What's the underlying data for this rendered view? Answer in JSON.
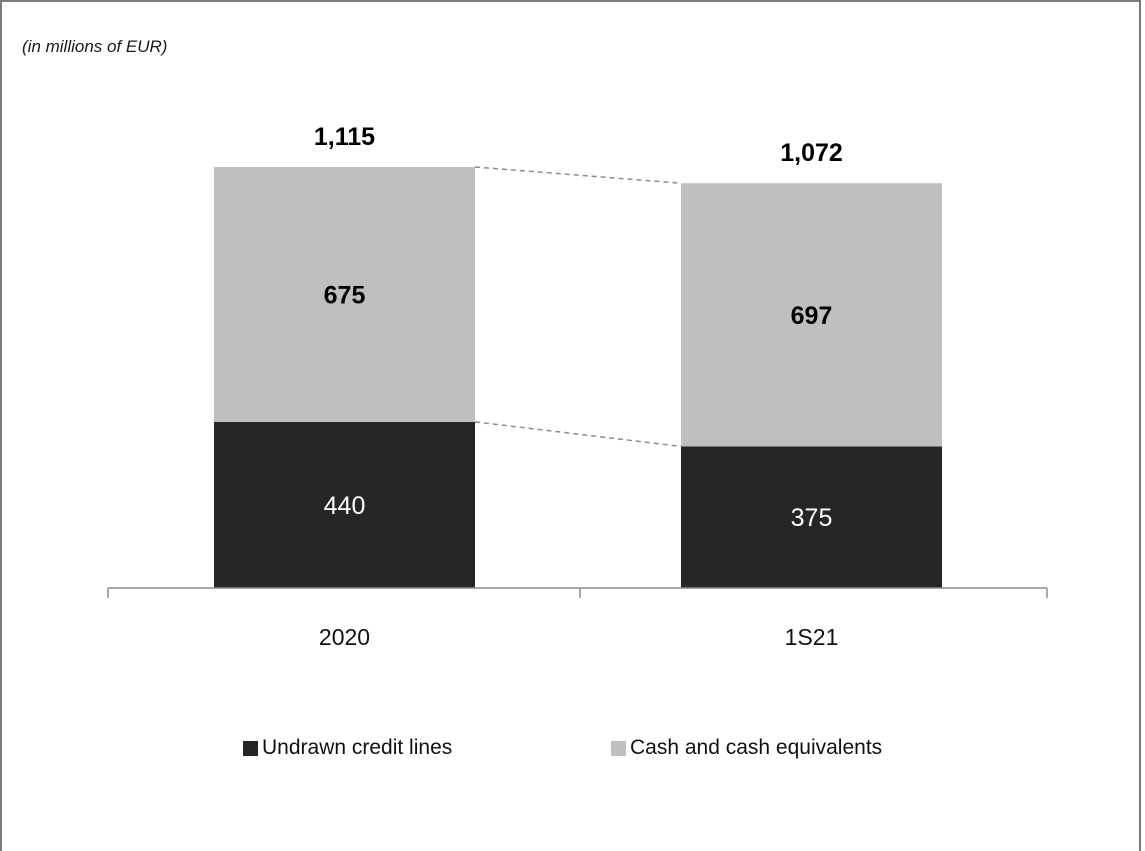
{
  "note": "(in millions of EUR)",
  "colors": {
    "undrawn": "#262626",
    "cash": "#bfbfbf",
    "connector": "#8c8c8c",
    "axis": "#8c8c8c"
  },
  "chart_data": {
    "type": "bar",
    "stacked": true,
    "categories": [
      "2020",
      "1S21"
    ],
    "series": [
      {
        "name": "Undrawn credit lines",
        "values": [
          440,
          375
        ],
        "label_style": "white-regular"
      },
      {
        "name": "Cash and cash equivalents",
        "values": [
          675,
          697
        ],
        "label_style": "black-bold"
      }
    ],
    "totals": [
      "1,115",
      "1,072"
    ],
    "segment_labels": [
      [
        "440",
        "675"
      ],
      [
        "375",
        "697"
      ]
    ],
    "legend_position": "bottom",
    "grid": false,
    "ylim": [
      0,
      1115
    ]
  }
}
